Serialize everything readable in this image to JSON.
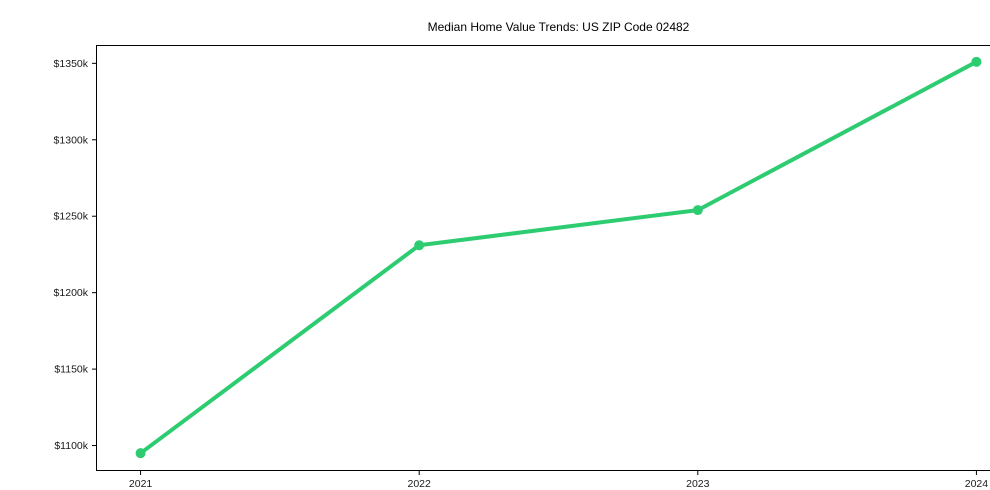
{
  "chart_data": {
    "type": "line",
    "title": "Median Home Value Trends: US ZIP Code 02482",
    "xlabel": "",
    "ylabel": "",
    "x": [
      2021,
      2022,
      2023,
      2024
    ],
    "values": [
      1095,
      1231,
      1254,
      1351
    ],
    "value_unit": "$k",
    "xlim": [
      2020.84,
      2024.16
    ],
    "ylim": [
      1084,
      1362
    ],
    "xticks": {
      "values": [
        2021,
        2022,
        2023,
        2024
      ],
      "labels": [
        "2021",
        "2022",
        "2023",
        "2024"
      ]
    },
    "yticks": {
      "values": [
        1100,
        1150,
        1200,
        1250,
        1300,
        1350
      ],
      "labels": [
        "$1100k",
        "$1150k",
        "$1200k",
        "$1250k",
        "$1300k",
        "$1350k"
      ]
    },
    "grid": false,
    "legend": "none",
    "line_color": "#2ecc71",
    "marker_color": "#2ecc71",
    "background_color": "#ffffff",
    "axis_color": "#000000",
    "tick_text_color": "#1a1a1a"
  }
}
